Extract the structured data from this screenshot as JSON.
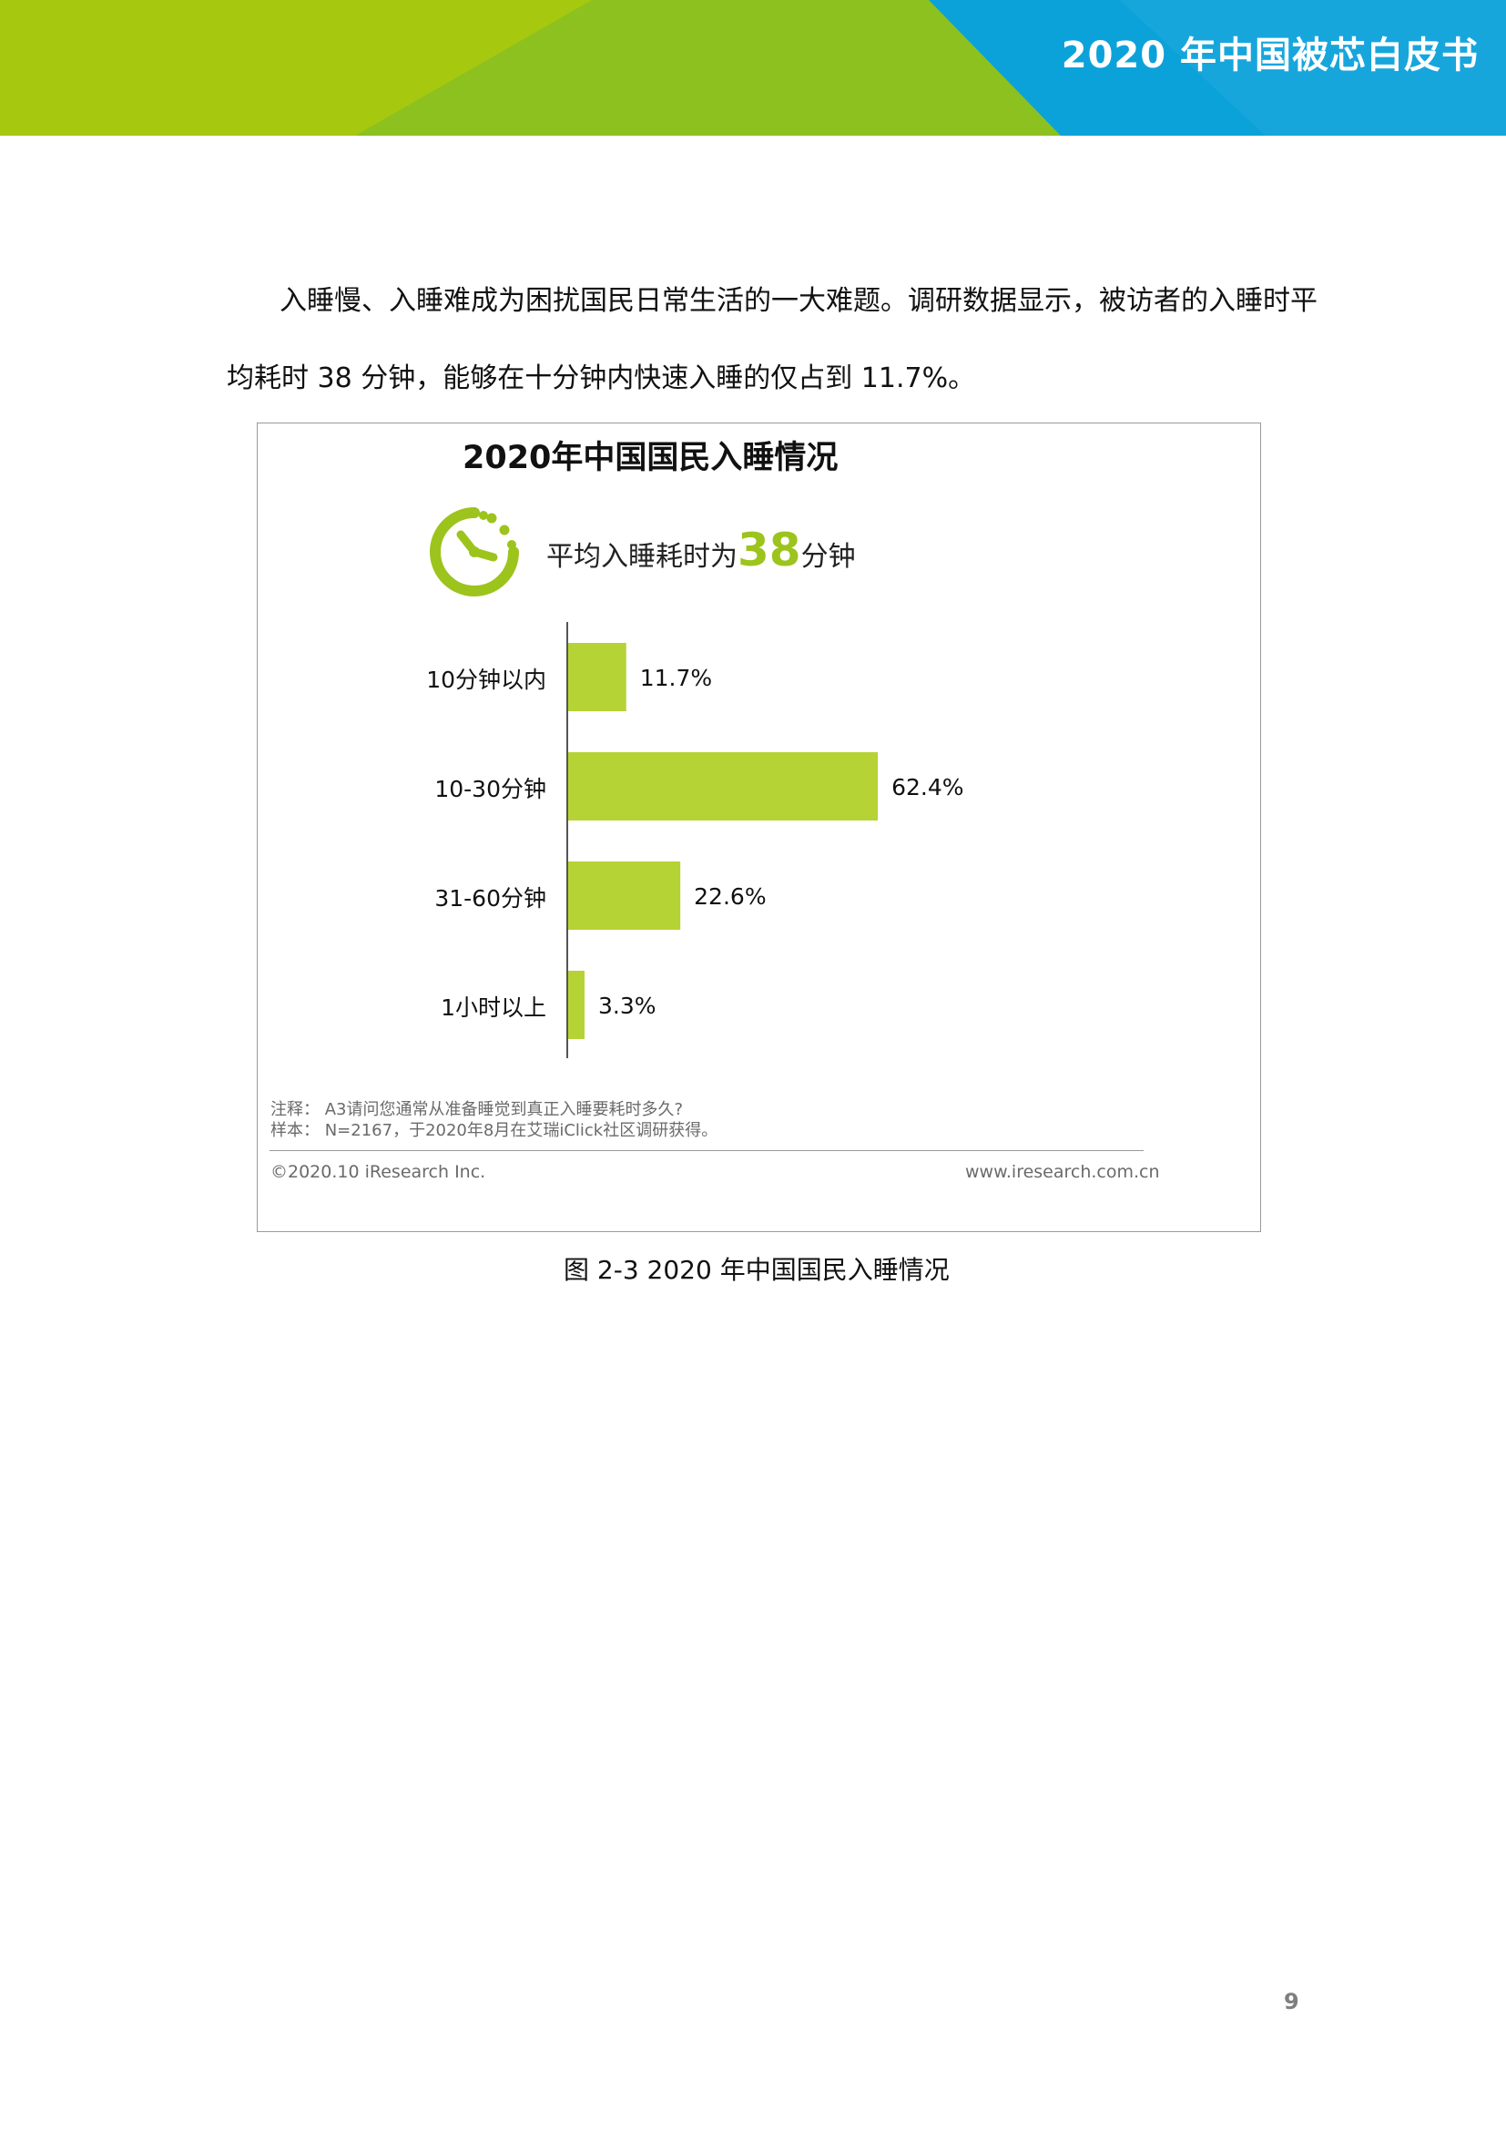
{
  "header": {
    "title": "2020 年中国被芯白皮书",
    "colors": {
      "green": "#a6c90f",
      "mid_green": "#8dc21f",
      "blue": "#0ba2da"
    }
  },
  "body_text": {
    "line1": "入睡慢、入睡难成为困扰国民日常生活的一大难题。调研数据显示，被访者的入睡时平",
    "line2": "均耗时 38 分钟，能够在十分钟内快速入睡的仅占到 11.7%。"
  },
  "figure": {
    "title": "2020年中国国民入睡情况",
    "icon": "clock-icon",
    "avg_text_before": "平均入睡耗时为",
    "avg_value": "38",
    "avg_text_after": "分钟",
    "note": "注释：  A3请问您通常从准备睡觉到真正入睡要耗时多久?",
    "sample": "样本：  N=2167，于2020年8月在艾瑞iClick社区调研获得。",
    "copyright": "©2020.10 iResearch Inc.",
    "website": "www.iresearch.com.cn",
    "caption": "图  2-3 2020 年中国国民入睡情况"
  },
  "chart_data": {
    "type": "bar",
    "orientation": "horizontal",
    "categories": [
      "10分钟以内",
      "10-30分钟",
      "31-60分钟",
      "1小时以上"
    ],
    "values": [
      11.7,
      62.4,
      22.6,
      3.3
    ],
    "value_labels": [
      "11.7%",
      "62.4%",
      "22.6%",
      "3.3%"
    ],
    "bar_color": "#b5d334",
    "grid": false,
    "legend": "none"
  },
  "page": {
    "number": "9"
  }
}
